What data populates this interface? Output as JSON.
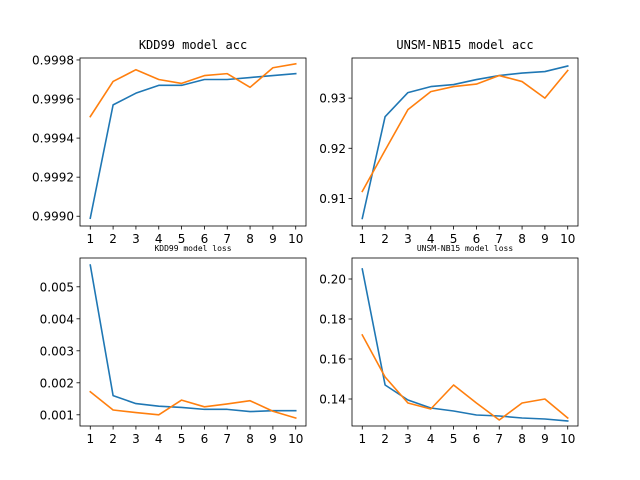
{
  "chart_data": [
    {
      "type": "line",
      "title": "KDD99 model acc",
      "x": [
        1,
        2,
        3,
        4,
        5,
        6,
        7,
        8,
        9,
        10
      ],
      "xlim": [
        0.55,
        10.45
      ],
      "ylim": [
        0.99895,
        0.99981
      ],
      "yticks": [
        0.999,
        0.9992,
        0.9994,
        0.9996,
        0.9998
      ],
      "ytick_labels": [
        "0.9990",
        "0.9992",
        "0.9994",
        "0.9996",
        "0.9998"
      ],
      "series": [
        {
          "color": "#1f77b4",
          "values": [
            0.99899,
            0.99957,
            0.99963,
            0.99967,
            0.99967,
            0.9997,
            0.9997,
            0.99971,
            0.99972,
            0.99973
          ]
        },
        {
          "color": "#ff7f0e",
          "values": [
            0.99951,
            0.99969,
            0.99975,
            0.9997,
            0.99968,
            0.99972,
            0.99973,
            0.99966,
            0.99976,
            0.99978
          ]
        }
      ]
    },
    {
      "type": "line",
      "title": "UNSM-NB15 model acc",
      "x": [
        1,
        2,
        3,
        4,
        5,
        6,
        7,
        8,
        9,
        10
      ],
      "xlim": [
        0.55,
        10.45
      ],
      "ylim": [
        0.9045,
        0.938
      ],
      "yticks": [
        0.91,
        0.92,
        0.93
      ],
      "ytick_labels": [
        "0.91",
        "0.92",
        "0.93"
      ],
      "series": [
        {
          "color": "#1f77b4",
          "values": [
            0.906,
            0.9263,
            0.9311,
            0.9323,
            0.9327,
            0.9337,
            0.9345,
            0.935,
            0.9353,
            0.9364
          ]
        },
        {
          "color": "#ff7f0e",
          "values": [
            0.9114,
            0.9196,
            0.9277,
            0.9313,
            0.9323,
            0.9328,
            0.9345,
            0.9333,
            0.93,
            0.9355
          ]
        }
      ]
    },
    {
      "type": "line",
      "title": "KDD99 model loss",
      "x": [
        1,
        2,
        3,
        4,
        5,
        6,
        7,
        8,
        9,
        10
      ],
      "xlim": [
        0.55,
        10.45
      ],
      "ylim": [
        0.00065,
        0.0059
      ],
      "yticks": [
        0.001,
        0.002,
        0.003,
        0.004,
        0.005
      ],
      "ytick_labels": [
        "0.001",
        "0.002",
        "0.003",
        "0.004",
        "0.005"
      ],
      "series": [
        {
          "color": "#1f77b4",
          "values": [
            0.00568,
            0.0016,
            0.00135,
            0.00127,
            0.00123,
            0.00117,
            0.00117,
            0.0011,
            0.00113,
            0.00113
          ]
        },
        {
          "color": "#ff7f0e",
          "values": [
            0.00172,
            0.00115,
            0.00107,
            0.001,
            0.00146,
            0.00125,
            0.00134,
            0.00144,
            0.00111,
            0.0009
          ]
        }
      ]
    },
    {
      "type": "line",
      "title": "UNSM-NB15 model loss",
      "x": [
        1,
        2,
        3,
        4,
        5,
        6,
        7,
        8,
        9,
        10
      ],
      "xlim": [
        0.55,
        10.45
      ],
      "ylim": [
        0.1265,
        0.2105
      ],
      "yticks": [
        0.14,
        0.16,
        0.18,
        0.2
      ],
      "ytick_labels": [
        "0.14",
        "0.16",
        "0.18",
        "0.20"
      ],
      "series": [
        {
          "color": "#1f77b4",
          "values": [
            0.205,
            0.147,
            0.1395,
            0.1355,
            0.134,
            0.132,
            0.1315,
            0.1305,
            0.13,
            0.129
          ]
        },
        {
          "color": "#ff7f0e",
          "values": [
            0.172,
            0.151,
            0.138,
            0.135,
            0.147,
            0.138,
            0.1295,
            0.138,
            0.14,
            0.1305
          ]
        }
      ]
    }
  ]
}
